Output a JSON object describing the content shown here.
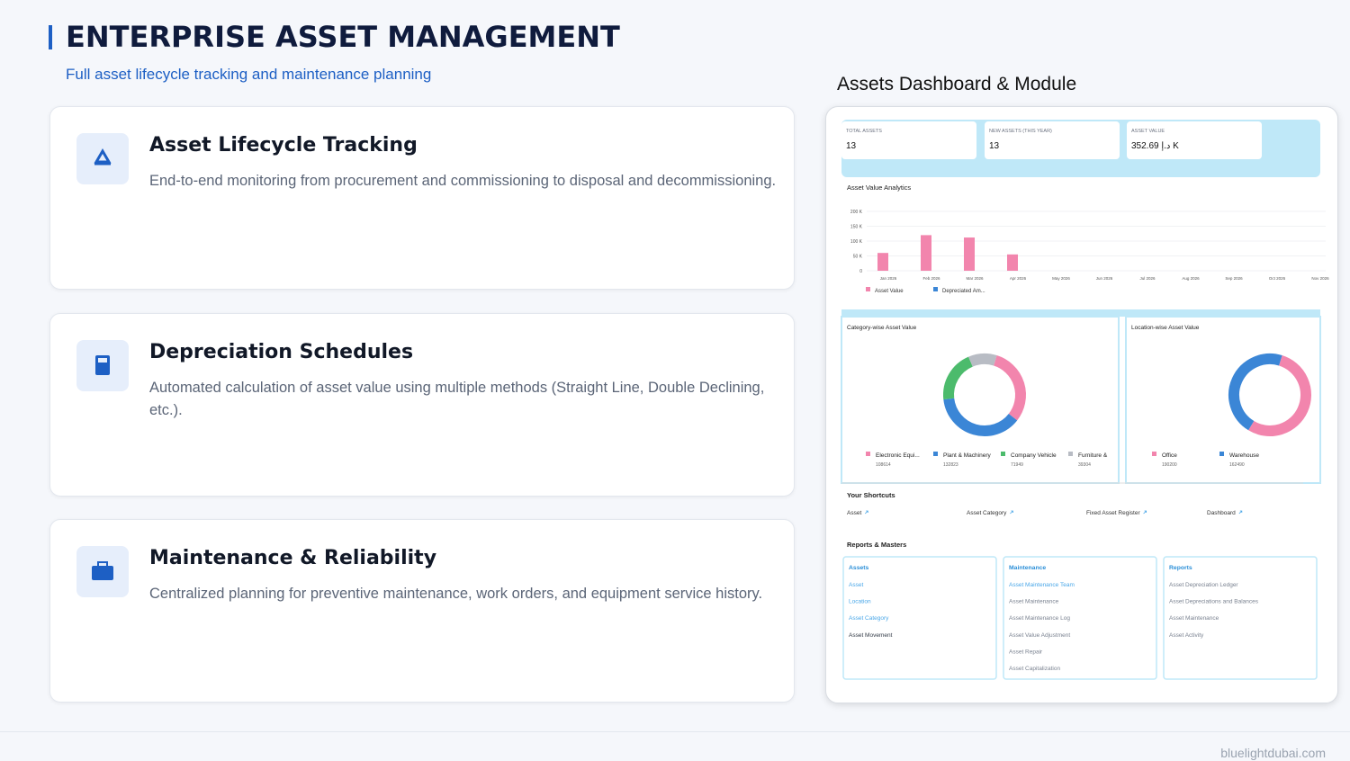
{
  "header": {
    "title": "ENTERPRISE ASSET MANAGEMENT",
    "subtitle": "Full asset lifecycle tracking and maintenance planning"
  },
  "features": [
    {
      "title": "Asset Lifecycle Tracking",
      "description": "End-to-end monitoring from procurement and commissioning to disposal and decommissioning."
    },
    {
      "title": "Depreciation Schedules",
      "description": "Automated calculation of asset value using multiple methods (Straight Line, Double Declining, etc.)."
    },
    {
      "title": "Maintenance & Reliability",
      "description": "Centralized planning for preventive maintenance, work orders, and equipment service history."
    }
  ],
  "dashboard": {
    "title": "Assets Dashboard & Module",
    "kpis": [
      {
        "label": "TOTAL ASSETS",
        "value": "13"
      },
      {
        "label": "NEW ASSETS (THIS YEAR)",
        "value": "13"
      },
      {
        "label": "ASSET VALUE",
        "value": "352.69 د.إ K"
      }
    ],
    "chart_data": [
      {
        "type": "bar",
        "title": "Asset Value Analytics",
        "categories": [
          "Jan 2026",
          "Feb 2026",
          "Mar 2026",
          "Apr 2026",
          "May 2026",
          "Jun 2026",
          "Jul 2026",
          "Aug 2026",
          "Sep 2026",
          "Oct 2026",
          "Nov 2026"
        ],
        "series": [
          {
            "name": "Asset Value",
            "color": "#f285ad",
            "values": [
              60,
              120,
              112,
              55,
              0,
              0,
              0,
              0,
              0,
              0,
              0
            ]
          },
          {
            "name": "Depreciated Am...",
            "color": "#3b86d6",
            "values": [
              0,
              0,
              0,
              0,
              0,
              0,
              0,
              0,
              0,
              0,
              0
            ]
          }
        ],
        "ylim": [
          0,
          200
        ],
        "yticks": [
          0,
          {
            "value": 50,
            "label": "50 K"
          },
          {
            "value": 100,
            "label": "100 K"
          },
          {
            "value": 150,
            "label": "150 K"
          },
          {
            "value": 200,
            "label": "200 K"
          }
        ],
        "grid": true
      },
      {
        "type": "donut",
        "title": "Category-wise Asset Value",
        "categories": [
          "Electronic Equi...",
          "Plant & Machinery",
          "Company Vehicle",
          "Furniture &"
        ],
        "values": [
          108614,
          132823,
          71949,
          39304
        ],
        "colors": [
          "#f285ad",
          "#3b86d6",
          "#4cbb6c",
          "#b8bcc4"
        ]
      },
      {
        "type": "donut",
        "title": "Location-wise Asset Value",
        "categories": [
          "Office",
          "Warehouse"
        ],
        "values": [
          190200,
          162490
        ],
        "colors": [
          "#f285ad",
          "#3b86d6"
        ]
      }
    ],
    "shortcuts": {
      "title": "Your Shortcuts",
      "items": [
        "Asset",
        "Asset Category",
        "Fixed Asset Register",
        "Dashboard"
      ]
    },
    "reports": {
      "title": "Reports & Masters",
      "columns": [
        {
          "title": "Assets",
          "items": [
            {
              "label": "Asset",
              "color": "#4aa7e8"
            },
            {
              "label": "Location",
              "color": "#4aa7e8"
            },
            {
              "label": "Asset Category",
              "color": "#4aa7e8"
            },
            {
              "label": "Asset Movement",
              "color": "#333b47"
            }
          ]
        },
        {
          "title": "Maintenance",
          "items": [
            {
              "label": "Asset Maintenance Team",
              "color": "#4aa7e8"
            },
            {
              "label": "Asset Maintenance",
              "color": "#7a8290"
            },
            {
              "label": "Asset Maintenance Log",
              "color": "#7a8290"
            },
            {
              "label": "Asset Value Adjustment",
              "color": "#7a8290"
            },
            {
              "label": "Asset Repair",
              "color": "#7a8290"
            },
            {
              "label": "Asset Capitalization",
              "color": "#7a8290"
            }
          ]
        },
        {
          "title": "Reports",
          "items": [
            {
              "label": "Asset Depreciation Ledger",
              "color": "#7a8290"
            },
            {
              "label": "Asset Depreciations and Balances",
              "color": "#7a8290"
            },
            {
              "label": "Asset Maintenance",
              "color": "#7a8290"
            },
            {
              "label": "Asset Activity",
              "color": "#7a8290"
            }
          ]
        }
      ]
    }
  },
  "footer": "bluelightdubai.com"
}
